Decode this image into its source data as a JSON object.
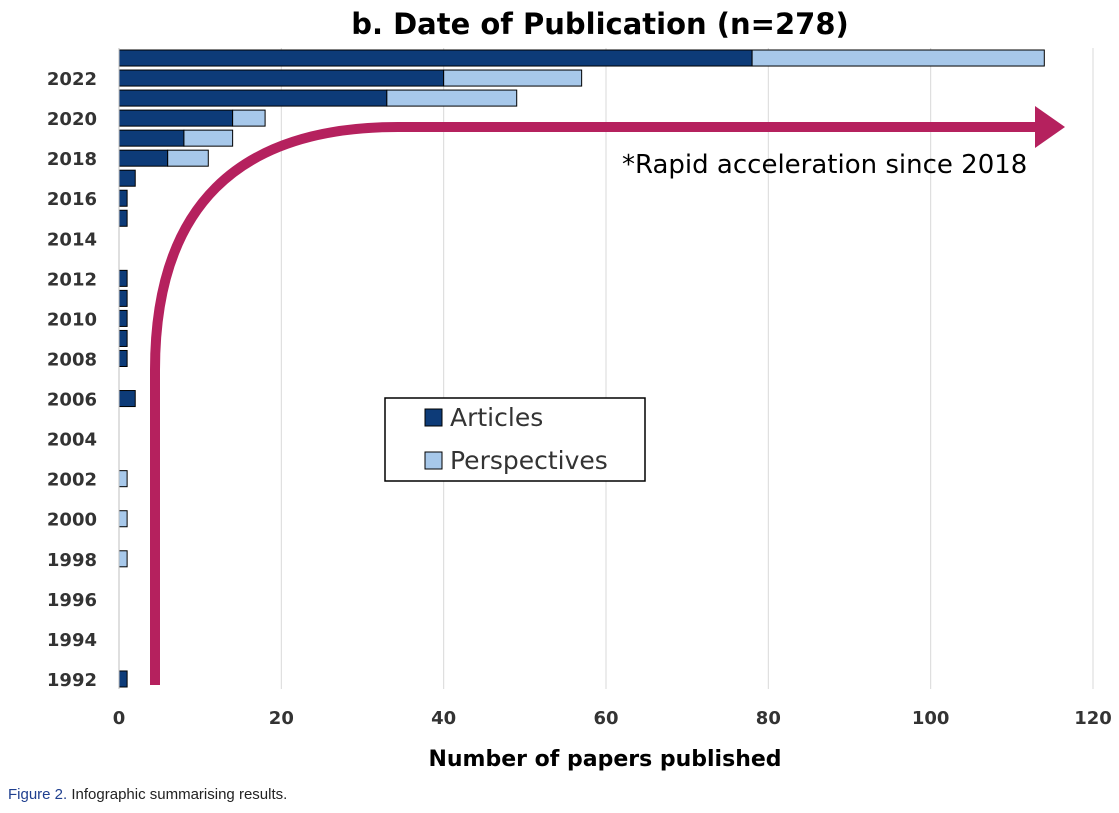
{
  "colors": {
    "articles": "#0d3b78",
    "perspectives": "#a7c8ea",
    "arrow": "#b5215e",
    "grid": "#d9d9d9"
  },
  "caption": {
    "label": "Figure 2.",
    "text": "Infographic summarising results."
  },
  "chart_data": {
    "type": "bar",
    "orientation": "horizontal",
    "stacked": true,
    "title": "b. Date of Publication (n=278)",
    "xlabel": "Number of papers published",
    "ylabel": "",
    "xlim": [
      0,
      120
    ],
    "xticks": [
      0,
      20,
      40,
      60,
      80,
      100,
      120
    ],
    "grid": "vertical",
    "categories": [
      1992,
      1993,
      1994,
      1995,
      1996,
      1997,
      1998,
      1999,
      2000,
      2001,
      2002,
      2003,
      2004,
      2005,
      2006,
      2007,
      2008,
      2009,
      2010,
      2011,
      2012,
      2013,
      2014,
      2015,
      2016,
      2017,
      2018,
      2019,
      2020,
      2021,
      2022,
      2023
    ],
    "category_tick_labels": [
      "1992",
      "1994",
      "1996",
      "1998",
      "2000",
      "2002",
      "2004",
      "2006",
      "2008",
      "2010",
      "2012",
      "2014",
      "2016",
      "2018",
      "2020",
      "2022"
    ],
    "series": [
      {
        "name": "Articles",
        "values": [
          1,
          0,
          0,
          0,
          0,
          0,
          0,
          0,
          0,
          0,
          0,
          0,
          0,
          0,
          2,
          0,
          1,
          1,
          1,
          1,
          1,
          0,
          0,
          1,
          1,
          2,
          6,
          8,
          14,
          33,
          40,
          78
        ]
      },
      {
        "name": "Perspectives",
        "values": [
          0,
          0,
          0,
          0,
          0,
          0,
          1,
          0,
          1,
          0,
          1,
          0,
          0,
          0,
          0,
          0,
          0,
          0,
          0,
          0,
          0,
          0,
          0,
          0,
          0,
          0,
          5,
          6,
          4,
          16,
          17,
          36
        ]
      }
    ],
    "legend": {
      "position": "center",
      "entries": [
        "Articles",
        "Perspectives"
      ]
    },
    "annotation": "*Rapid acceleration since 2018"
  }
}
